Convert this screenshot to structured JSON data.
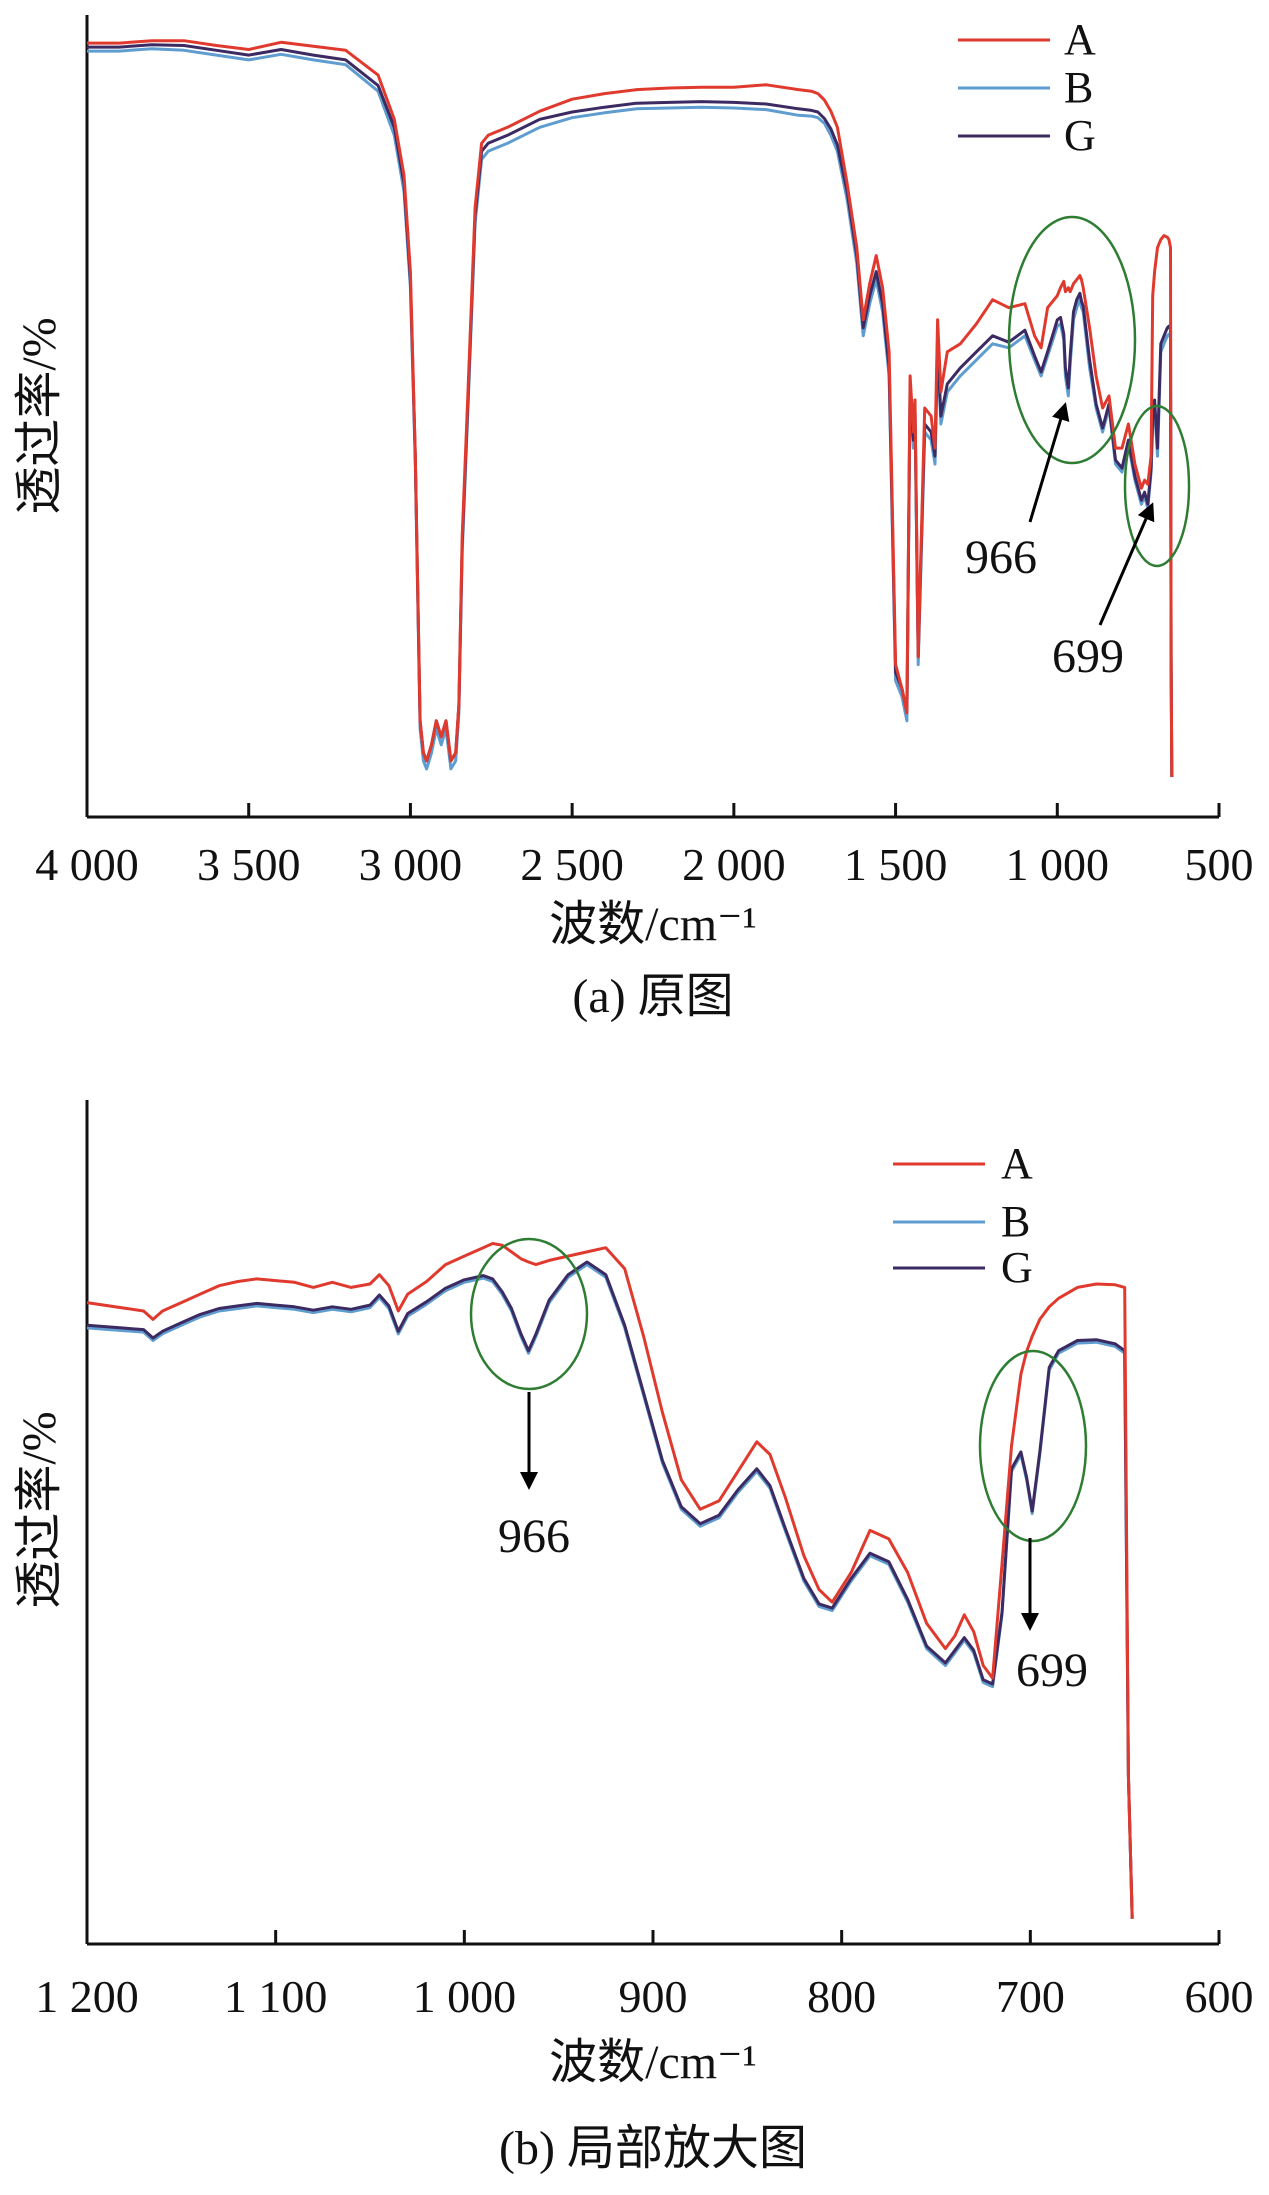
{
  "chart_data": [
    {
      "type": "line",
      "panel": "a",
      "caption": "(a) 原图",
      "xlabel": "波数/cm⁻¹",
      "ylabel": "透过率/%",
      "x_reversed": true,
      "xlim": [
        4000,
        500
      ],
      "ylim": [
        0,
        100
      ],
      "x_ticks": [
        4000,
        3500,
        3000,
        2500,
        2000,
        1500,
        1000,
        500
      ],
      "x_tick_labels": [
        "4 000",
        "3 500",
        "3 000",
        "2 500",
        "2 000",
        "1 500",
        "1 000",
        "500"
      ],
      "y_ticks_shown": false,
      "grid": false,
      "legend_position": "top-right",
      "x": [
        4000,
        3900,
        3800,
        3700,
        3600,
        3500,
        3400,
        3300,
        3200,
        3100,
        3050,
        3020,
        3000,
        2985,
        2970,
        2960,
        2950,
        2935,
        2920,
        2905,
        2890,
        2875,
        2860,
        2850,
        2840,
        2820,
        2800,
        2780,
        2760,
        2700,
        2600,
        2500,
        2400,
        2300,
        2200,
        2100,
        2000,
        1900,
        1800,
        1760,
        1740,
        1720,
        1700,
        1680,
        1650,
        1620,
        1600,
        1580,
        1560,
        1540,
        1520,
        1500,
        1480,
        1465,
        1455,
        1445,
        1440,
        1430,
        1410,
        1390,
        1378,
        1370,
        1360,
        1340,
        1300,
        1250,
        1200,
        1150,
        1100,
        1070,
        1050,
        1030,
        1000,
        990,
        980,
        975,
        966,
        960,
        950,
        940,
        930,
        925,
        920,
        900,
        880,
        860,
        840,
        820,
        800,
        780,
        760,
        740,
        730,
        720,
        710,
        705,
        699,
        690,
        680,
        670,
        660,
        655,
        650,
        648,
        646
      ],
      "series": [
        {
          "name": "A",
          "color": "#e03a2f",
          "values": [
            96.5,
            96.5,
            96.8,
            96.8,
            96.2,
            95.7,
            96.6,
            96.1,
            95.6,
            92.5,
            87,
            80,
            68,
            45,
            12,
            8,
            7,
            9,
            12,
            10,
            12,
            7,
            8,
            14,
            35,
            55,
            76,
            84,
            85,
            86,
            88,
            89.5,
            90.2,
            90.7,
            90.9,
            91,
            91,
            91.3,
            90.7,
            90.5,
            90.2,
            89.4,
            88,
            86,
            79,
            71,
            62,
            66.5,
            70,
            66,
            58,
            19,
            16,
            13,
            55,
            48,
            52,
            20,
            51,
            50,
            46,
            62,
            53,
            58,
            59,
            61.5,
            64.5,
            63.5,
            64,
            60,
            58.5,
            63.5,
            65,
            66,
            66.8,
            65.5,
            66,
            65.5,
            66.5,
            67,
            67.5,
            67,
            66,
            61,
            55,
            51,
            52.5,
            46,
            46,
            49,
            44,
            41,
            42,
            41.5,
            45,
            65,
            68,
            71,
            72,
            72.5,
            72.3,
            72,
            71,
            20,
            5
          ]
        },
        {
          "name": "B",
          "color": "#5f9ccf",
          "values": [
            95.5,
            95.5,
            95.8,
            95.6,
            95.0,
            94.4,
            95.1,
            94.4,
            93.8,
            90.5,
            85,
            78,
            66,
            44,
            11,
            7,
            6,
            8,
            11,
            9,
            11,
            6,
            7,
            13,
            33,
            53,
            74,
            82,
            83,
            84,
            86,
            87.2,
            87.8,
            88.3,
            88.4,
            88.5,
            88.4,
            88.2,
            87.5,
            87.4,
            87.2,
            86.5,
            85,
            83,
            77,
            69,
            60,
            64,
            67,
            63,
            55,
            17,
            15,
            12,
            53,
            46,
            50,
            19,
            48,
            47,
            44,
            58,
            49,
            53,
            55,
            57,
            59,
            58.5,
            60,
            57,
            55,
            57.5,
            61.2,
            61.5,
            59.5,
            55,
            52.5,
            56.5,
            62,
            63.5,
            64.5,
            63.5,
            63,
            56,
            51,
            48,
            51,
            44,
            43,
            46.5,
            42,
            39,
            40,
            38.5,
            43,
            49,
            51,
            45,
            58,
            59,
            60,
            60.2,
            59.8,
            20,
            5
          ]
        },
        {
          "name": "G",
          "color": "#3c2a62",
          "values": [
            96.0,
            96.0,
            96.3,
            96.2,
            95.6,
            95.0,
            95.7,
            95.0,
            94.4,
            91.2,
            86,
            79,
            67,
            45,
            12,
            8,
            7,
            9,
            12,
            10,
            12,
            7,
            8,
            14,
            34,
            54,
            75,
            83,
            84,
            85,
            87,
            87.9,
            88.5,
            89.0,
            89.1,
            89.2,
            89.1,
            88.9,
            88.3,
            88.1,
            87.9,
            87.1,
            85.8,
            83.8,
            78,
            70,
            61,
            65,
            68,
            64,
            56,
            18,
            16,
            13,
            54,
            47,
            51,
            20,
            49,
            48,
            45,
            59,
            50,
            54,
            56,
            58,
            60,
            59.2,
            60.7,
            57.5,
            55.5,
            58,
            62,
            62.3,
            60.2,
            56,
            53.5,
            57.5,
            63,
            64.5,
            65.3,
            64.3,
            63.7,
            57,
            51.5,
            48.5,
            51.5,
            44.5,
            43.5,
            47,
            42.5,
            39.5,
            40.5,
            39,
            43.5,
            50,
            52,
            46,
            59,
            60,
            61,
            61.2,
            60.8,
            20,
            5
          ]
        }
      ],
      "annotations": [
        {
          "text": "966",
          "x": 966
        },
        {
          "text": "699",
          "x": 699
        }
      ]
    },
    {
      "type": "line",
      "panel": "b",
      "caption": "(b) 局部放大图",
      "xlabel": "波数/cm⁻¹",
      "ylabel": "透过率/%",
      "x_reversed": true,
      "xlim": [
        1200,
        600
      ],
      "ylim": [
        0,
        100
      ],
      "x_ticks": [
        1200,
        1100,
        1000,
        900,
        800,
        700,
        600
      ],
      "x_tick_labels": [
        "1 200",
        "1 100",
        "1 000",
        "900",
        "800",
        "700",
        "600"
      ],
      "y_ticks_shown": false,
      "grid": false,
      "legend_position": "top-right",
      "x": [
        1200,
        1170,
        1165,
        1160,
        1150,
        1140,
        1130,
        1120,
        1110,
        1100,
        1090,
        1080,
        1070,
        1060,
        1050,
        1045,
        1040,
        1035,
        1030,
        1020,
        1010,
        1000,
        990,
        985,
        980,
        975,
        970,
        966,
        962,
        955,
        945,
        935,
        925,
        915,
        905,
        895,
        885,
        875,
        865,
        855,
        845,
        838,
        830,
        820,
        812,
        805,
        795,
        785,
        775,
        765,
        755,
        745,
        740,
        735,
        730,
        725,
        720,
        715,
        710,
        705,
        702,
        699,
        695,
        690,
        685,
        675,
        665,
        655,
        650,
        648,
        646
      ],
      "series": [
        {
          "name": "A",
          "color": "#e03a2f",
          "values": [
            76,
            75,
            74,
            75,
            76,
            77,
            78,
            78.5,
            78.8,
            78.6,
            78.4,
            77.8,
            78.4,
            77.8,
            78.2,
            79.3,
            78,
            75,
            77,
            78.5,
            80.5,
            81.5,
            82.5,
            83,
            82.8,
            82,
            81.2,
            80.8,
            80.5,
            81,
            81.5,
            82,
            82.5,
            80,
            72,
            63,
            55,
            51.5,
            52.5,
            56,
            59.5,
            58,
            53,
            46,
            42,
            40.5,
            44,
            49,
            48,
            44,
            38,
            35,
            36.5,
            39,
            37,
            33,
            31.5,
            45,
            59,
            67.5,
            70.2,
            72,
            74,
            75.5,
            76.5,
            77.8,
            78.2,
            78.1,
            77.8,
            20,
            3
          ]
        },
        {
          "name": "B",
          "color": "#5f9ccf",
          "values": [
            73,
            72.5,
            71.5,
            72.3,
            73.3,
            74.3,
            75,
            75.3,
            75.6,
            75.4,
            75.2,
            74.8,
            75.2,
            74.9,
            75.4,
            76.6,
            75.3,
            72.3,
            74.4,
            75.8,
            77.4,
            78.4,
            78.9,
            78.5,
            77,
            75,
            72,
            70,
            72,
            76,
            79,
            80.5,
            79,
            73,
            65,
            57,
            51.5,
            49.5,
            50.5,
            53.5,
            56,
            54,
            49,
            43,
            40,
            39.5,
            43,
            46,
            45,
            40.5,
            35,
            33,
            34.5,
            36,
            34.5,
            31,
            30.5,
            39,
            56,
            58,
            55,
            51,
            58,
            68,
            70,
            71.2,
            71.3,
            70.8,
            70,
            20,
            3
          ]
        },
        {
          "name": "G",
          "color": "#3c2a62",
          "values": [
            73.3,
            72.8,
            71.8,
            72.6,
            73.6,
            74.6,
            75.3,
            75.6,
            75.9,
            75.7,
            75.5,
            75.1,
            75.5,
            75.2,
            75.7,
            76.9,
            75.6,
            72.6,
            74.7,
            76.1,
            77.7,
            78.7,
            79.2,
            78.8,
            77.3,
            75.3,
            72.3,
            70.3,
            72.3,
            76.3,
            79.3,
            80.8,
            79.3,
            73.3,
            65.3,
            57.3,
            51.8,
            49.8,
            50.8,
            53.8,
            56.3,
            54.3,
            49.3,
            43.3,
            40.3,
            39.8,
            43.3,
            46.3,
            45.3,
            40.8,
            35.3,
            33.3,
            34.8,
            36.3,
            34.8,
            31.3,
            30.8,
            39.3,
            56.3,
            58.3,
            55.3,
            51.3,
            58.3,
            68.3,
            70.3,
            71.5,
            71.6,
            71.1,
            70.3,
            20,
            3
          ]
        }
      ],
      "annotations": [
        {
          "text": "966",
          "x": 966
        },
        {
          "text": "699",
          "x": 699
        }
      ]
    }
  ]
}
